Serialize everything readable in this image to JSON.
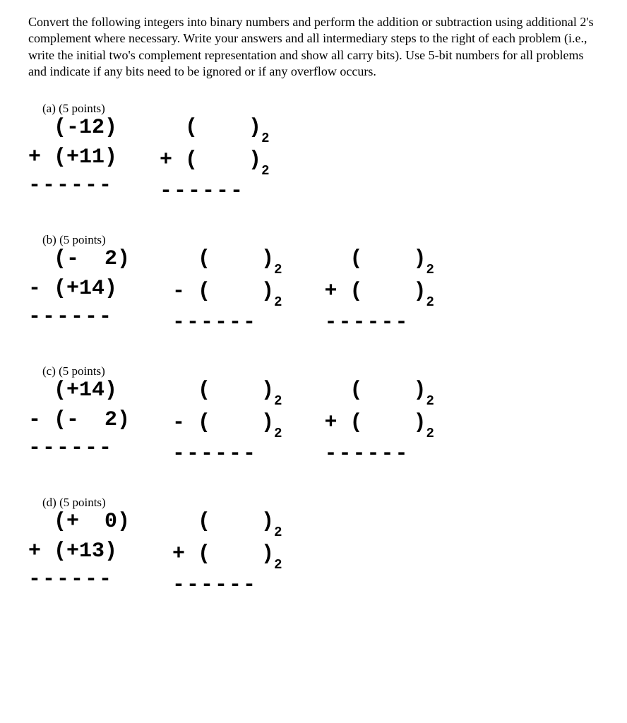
{
  "instructions": "Convert the following integers into binary numbers and perform the addition or subtraction using additional 2's complement where necessary. Write your answers and all intermediary steps to the right of each problem (i.e., write the initial two's complement representation and show all carry bits). Use 5-bit numbers for all problems and indicate if any bits need to be ignored or if any overflow occurs.",
  "problems": [
    {
      "label": "(a)  (5 points)",
      "col1": {
        "line1": "  (-12)",
        "line2": "+ (+11)",
        "dashes": "------"
      },
      "col2": {
        "line1": "  (    )",
        "line2": "+ (    )",
        "dashes": "------",
        "sub": "2"
      },
      "col3": null
    },
    {
      "label": "(b)  (5 points)",
      "col1": {
        "line1": "  (-  2)",
        "line2": "- (+14)",
        "dashes": "------"
      },
      "col2": {
        "line1": "  (    )",
        "line2": "- (    )",
        "dashes": "------",
        "sub": "2"
      },
      "col3": {
        "line1": "  (    )",
        "line2": "+ (    )",
        "dashes": "------",
        "sub": "2"
      }
    },
    {
      "label": "(c)  (5 points)",
      "col1": {
        "line1": "  (+14)",
        "line2": "- (-  2)",
        "dashes": "------"
      },
      "col2": {
        "line1": "  (    )",
        "line2": "- (    )",
        "dashes": "------",
        "sub": "2"
      },
      "col3": {
        "line1": "  (    )",
        "line2": "+ (    )",
        "dashes": "------",
        "sub": "2"
      }
    },
    {
      "label": "(d)  (5 points)",
      "col1": {
        "line1": "  (+  0)",
        "line2": "+ (+13)",
        "dashes": "------"
      },
      "col2": {
        "line1": "  (    )",
        "line2": "+ (    )",
        "dashes": "------",
        "sub": "2"
      },
      "col3": null
    }
  ]
}
